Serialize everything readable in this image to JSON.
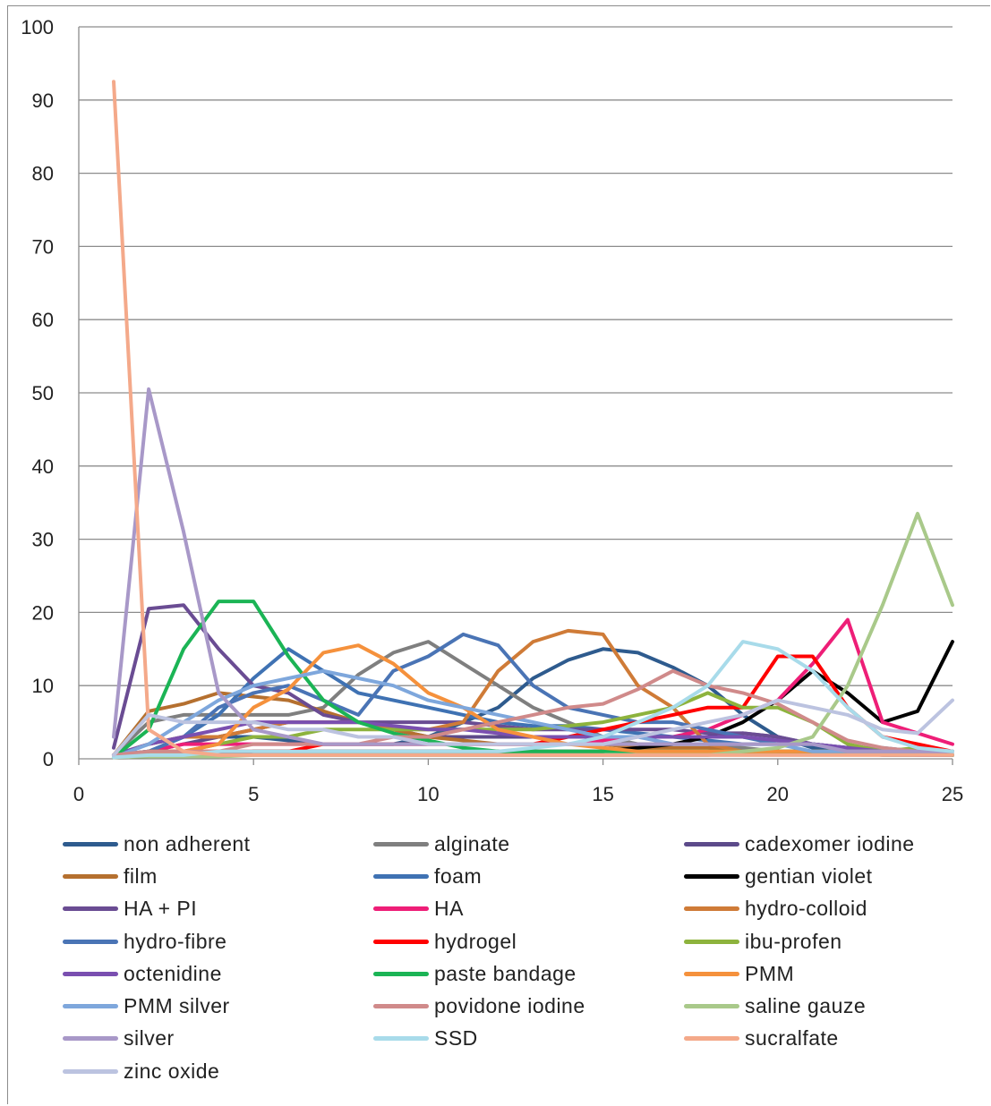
{
  "chart_data": {
    "type": "line",
    "title": "",
    "xlabel": "",
    "ylabel": "",
    "xlim": [
      0,
      25
    ],
    "ylim": [
      0,
      100
    ],
    "x_ticks": [
      0,
      5,
      10,
      15,
      20,
      25
    ],
    "y_ticks": [
      0,
      10,
      20,
      30,
      40,
      50,
      60,
      70,
      80,
      90,
      100
    ],
    "grid": "horizontal",
    "legend_position": "bottom",
    "x": [
      1,
      2,
      3,
      4,
      5,
      6,
      7,
      8,
      9,
      10,
      11,
      12,
      13,
      14,
      15,
      16,
      17,
      18,
      19,
      20,
      21,
      22,
      23,
      24,
      25
    ],
    "series": [
      {
        "name": "non adherent",
        "color": "#2e5b8e",
        "values": [
          0.5,
          2,
          3,
          3,
          3,
          2.5,
          2,
          2,
          2,
          3,
          5,
          7,
          11,
          13.5,
          15,
          14.5,
          12.5,
          10,
          6,
          3,
          1.5,
          1,
          0.5,
          0.5,
          0.5
        ]
      },
      {
        "name": "alginate",
        "color": "#7f7f7f",
        "values": [
          0.5,
          5,
          6,
          6,
          6,
          6,
          7,
          11.5,
          14.5,
          16,
          13,
          10,
          7,
          5,
          3,
          2,
          2,
          2,
          1.5,
          1,
          1,
          1,
          1,
          1,
          1
        ]
      },
      {
        "name": "cadexomer iodine",
        "color": "#5c4a8a",
        "values": [
          0.5,
          1,
          2,
          3,
          4,
          5,
          5,
          5,
          4,
          3,
          3,
          3,
          3,
          3,
          3,
          3,
          3,
          3,
          3.5,
          3,
          2,
          1.5,
          1,
          1,
          1
        ]
      },
      {
        "name": "film",
        "color": "#b5702f",
        "values": [
          0.5,
          6.5,
          7.5,
          9,
          8.5,
          8,
          6.5,
          5,
          4,
          3,
          2.5,
          2,
          2,
          2,
          2,
          1.5,
          1.5,
          1.5,
          1,
          1,
          1,
          1,
          1,
          1,
          1
        ]
      },
      {
        "name": "foam",
        "color": "#3f72b3",
        "values": [
          0.5,
          1,
          3,
          6,
          11,
          15,
          12,
          9,
          8,
          7,
          6,
          5,
          4.5,
          4.5,
          4,
          3.5,
          3,
          2.5,
          2,
          2,
          2,
          1.5,
          1.5,
          1,
          1
        ]
      },
      {
        "name": "gentian violet",
        "color": "#000000",
        "values": [
          0.2,
          0.3,
          0.3,
          0.5,
          1,
          1,
          1,
          1,
          1,
          1,
          1,
          1,
          1,
          1,
          1,
          1.5,
          2,
          3,
          5,
          8,
          12,
          9,
          5,
          6.5,
          16
        ]
      },
      {
        "name": "HA + PI",
        "color": "#6a4c93",
        "values": [
          1.5,
          20.5,
          21,
          15,
          10,
          9,
          6,
          5,
          5,
          5,
          5,
          4.5,
          4,
          4,
          4,
          4,
          4,
          3.5,
          3.5,
          3,
          2,
          1.5,
          1,
          1,
          1
        ]
      },
      {
        "name": "HA",
        "color": "#ee1e77",
        "values": [
          0.2,
          1,
          2,
          2,
          2,
          2,
          2,
          2,
          2,
          2,
          2,
          2,
          2,
          2,
          2.5,
          3,
          3,
          4,
          6,
          8,
          13,
          19,
          5,
          3.5,
          2
        ]
      },
      {
        "name": "hydro-colloid",
        "color": "#cf7b37",
        "values": [
          0.5,
          2,
          3,
          3,
          4,
          5,
          5,
          5,
          4,
          4,
          5,
          12,
          16,
          17.5,
          17,
          10,
          7,
          2,
          1,
          1,
          1,
          1,
          1,
          1,
          1
        ]
      },
      {
        "name": "hydro-fibre",
        "color": "#4a74b5",
        "values": [
          0.5,
          1,
          3,
          7,
          9,
          10,
          8,
          6,
          12,
          14,
          17,
          15.5,
          10,
          7,
          6,
          5,
          5,
          4,
          3,
          2,
          2,
          1,
          1,
          1,
          1
        ]
      },
      {
        "name": "hydrogel",
        "color": "#ff0000",
        "values": [
          0.2,
          1,
          1,
          1,
          1,
          1,
          2,
          2,
          2,
          2,
          2,
          2,
          2,
          3,
          4,
          5,
          6,
          7,
          7,
          14,
          14,
          7,
          3,
          2,
          1
        ]
      },
      {
        "name": "ibu-profen",
        "color": "#8db33d",
        "values": [
          0.2,
          1,
          1,
          2,
          3,
          3,
          4,
          4,
          4,
          4,
          4,
          4,
          4,
          4.5,
          5,
          6,
          7,
          9,
          7,
          7,
          5,
          2,
          1,
          1.5,
          0.5
        ]
      },
      {
        "name": "octenidine",
        "color": "#7a4fb0",
        "values": [
          0.5,
          2,
          3,
          4,
          5,
          5,
          5,
          5,
          4.5,
          4,
          4,
          3.5,
          3,
          3,
          3,
          3,
          3,
          3,
          3,
          2.5,
          2,
          1.5,
          1,
          0.5,
          0.5
        ]
      },
      {
        "name": "paste bandage",
        "color": "#1bb455",
        "values": [
          0.2,
          4,
          15,
          21.5,
          21.5,
          14,
          8,
          5,
          3.5,
          2.5,
          1.5,
          1,
          1,
          1,
          1,
          1,
          1,
          1,
          1,
          1,
          1,
          1,
          1,
          1,
          0.5
        ]
      },
      {
        "name": "PMM",
        "color": "#f5913c",
        "values": [
          0.2,
          0.5,
          1,
          2,
          7,
          9.5,
          14.5,
          15.5,
          13,
          9,
          7,
          4,
          3,
          2,
          1.5,
          1,
          1,
          1,
          1,
          1,
          1,
          1,
          1,
          1,
          1
        ]
      },
      {
        "name": "PMM silver",
        "color": "#7ea7dc",
        "values": [
          0.2,
          2,
          5,
          8,
          10,
          11,
          12,
          11,
          10,
          8,
          7,
          6,
          5,
          4,
          3,
          3,
          2,
          2,
          2,
          2,
          1,
          1,
          1,
          1,
          1
        ]
      },
      {
        "name": "povidone iodine",
        "color": "#d08a8a",
        "values": [
          0.5,
          1,
          1,
          1,
          2,
          2,
          2,
          2,
          3,
          3,
          4,
          5,
          6,
          7,
          7.5,
          9.5,
          12,
          10,
          9,
          7.5,
          5,
          2.5,
          1.5,
          1,
          1
        ]
      },
      {
        "name": "saline gauze",
        "color": "#a9c98a",
        "values": [
          0.2,
          0.3,
          0.3,
          0.3,
          0.5,
          0.5,
          0.5,
          0.5,
          0.5,
          0.5,
          0.5,
          0.5,
          0.5,
          0.5,
          0.5,
          0.5,
          0.5,
          0.5,
          1,
          1.5,
          3,
          10,
          21,
          33.5,
          21
        ]
      },
      {
        "name": "silver",
        "color": "#a898c8",
        "values": [
          3,
          50.5,
          31,
          9,
          4,
          3,
          2,
          2,
          2,
          2,
          2,
          2,
          2,
          2,
          2,
          2,
          2,
          2,
          2,
          2,
          2,
          1,
          1,
          1,
          1
        ]
      },
      {
        "name": "SSD",
        "color": "#a8dbea",
        "values": [
          0.2,
          0.5,
          0.5,
          1,
          1,
          1,
          1,
          1,
          1,
          1,
          1,
          1,
          1.5,
          2,
          3,
          5,
          7,
          10,
          16,
          15,
          12,
          7,
          3,
          1.5,
          1
        ]
      },
      {
        "name": "sucralfate",
        "color": "#f4a98a",
        "values": [
          92.5,
          4,
          1,
          0.5,
          0.5,
          0.5,
          0.5,
          0.5,
          0.5,
          0.5,
          0.5,
          0.5,
          0.5,
          0.5,
          0.5,
          0.5,
          0.5,
          0.5,
          0.5,
          0.5,
          0.5,
          0.5,
          0.5,
          0.5,
          0.5
        ]
      },
      {
        "name": "zinc oxide",
        "color": "#bcc3e0",
        "values": [
          0.5,
          6,
          5,
          5,
          5,
          4,
          4,
          3,
          3,
          2,
          2,
          2,
          2,
          2,
          2,
          3,
          4,
          5,
          6,
          8,
          7,
          6,
          4,
          3.5,
          8
        ]
      }
    ]
  }
}
